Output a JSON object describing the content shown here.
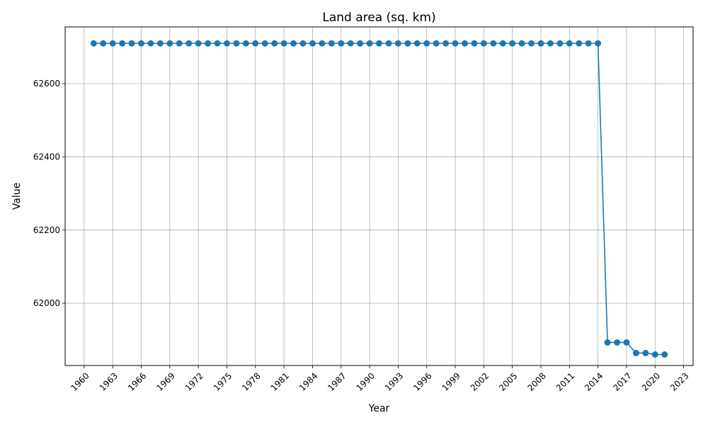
{
  "chart_data": {
    "type": "line",
    "title": "Land area (sq. km)",
    "xlabel": "Year",
    "ylabel": "Value",
    "xlim": [
      1958,
      2024
    ],
    "ylim": [
      61830,
      62755
    ],
    "x_ticks": [
      "1960",
      "1963",
      "1966",
      "1969",
      "1972",
      "1975",
      "1978",
      "1981",
      "1984",
      "1987",
      "1990",
      "1993",
      "1996",
      "1999",
      "2002",
      "2005",
      "2008",
      "2011",
      "2014",
      "2017",
      "2020",
      "2023"
    ],
    "y_ticks": [
      62000,
      62200,
      62400,
      62600
    ],
    "grid": true,
    "marker": "circle",
    "series": [
      {
        "color": "#1f77b4",
        "x": [
          1961,
          1962,
          1963,
          1964,
          1965,
          1966,
          1967,
          1968,
          1969,
          1970,
          1971,
          1972,
          1973,
          1974,
          1975,
          1976,
          1977,
          1978,
          1979,
          1980,
          1981,
          1982,
          1983,
          1984,
          1985,
          1986,
          1987,
          1988,
          1989,
          1990,
          1991,
          1992,
          1993,
          1994,
          1995,
          1996,
          1997,
          1998,
          1999,
          2000,
          2001,
          2002,
          2003,
          2004,
          2005,
          2006,
          2007,
          2008,
          2009,
          2010,
          2011,
          2012,
          2013,
          2014,
          2015,
          2016,
          2017,
          2018,
          2019,
          2020,
          2021
        ],
        "y": [
          62710,
          62710,
          62710,
          62710,
          62710,
          62710,
          62710,
          62710,
          62710,
          62710,
          62710,
          62710,
          62710,
          62710,
          62710,
          62710,
          62710,
          62710,
          62710,
          62710,
          62710,
          62710,
          62710,
          62710,
          62710,
          62710,
          62710,
          62710,
          62710,
          62710,
          62710,
          62710,
          62710,
          62710,
          62710,
          62710,
          62710,
          62710,
          62710,
          62710,
          62710,
          62710,
          62710,
          62710,
          62710,
          62710,
          62710,
          62710,
          62710,
          62710,
          62710,
          62710,
          62710,
          62710,
          61893,
          61893,
          61893,
          61864,
          61864,
          61860,
          61860
        ]
      }
    ]
  }
}
